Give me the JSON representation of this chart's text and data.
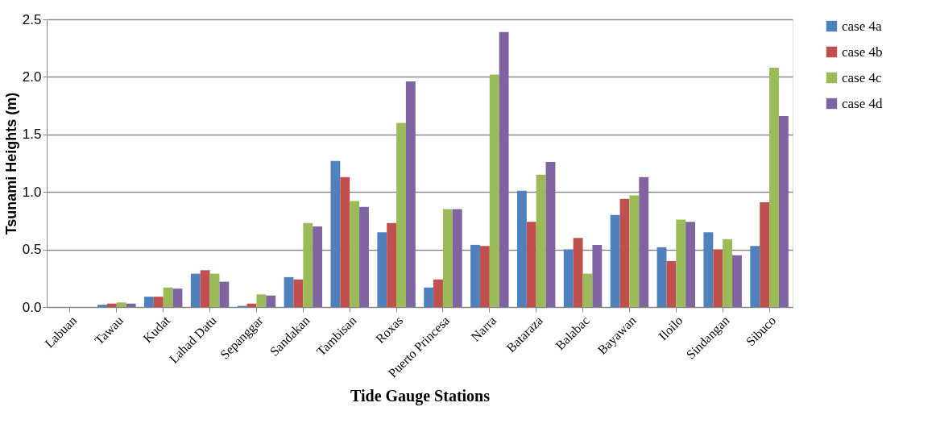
{
  "chart_data": {
    "type": "bar",
    "xlabel": "Tide Gauge Stations",
    "ylabel": "Tsunami Heights (m)",
    "categories": [
      "Labuan",
      "Tawau",
      "Kudat",
      "Lahad Datu",
      "Sepanggar",
      "Sandakan",
      "Tambisan",
      "Roxas",
      "Puerto Princesa",
      "Narra",
      "Bataraza",
      "Balabac",
      "Bayawan",
      "Iloilo",
      "Sindangan",
      "Sibuco"
    ],
    "series": [
      {
        "name": "case 4a",
        "color": "#4f81bd",
        "values": [
          null,
          0.02,
          0.09,
          0.29,
          0.01,
          0.26,
          1.27,
          0.65,
          0.17,
          0.54,
          1.01,
          0.5,
          0.8,
          0.52,
          0.65,
          0.53
        ]
      },
      {
        "name": "case 4b",
        "color": "#c0504d",
        "values": [
          null,
          0.03,
          0.09,
          0.32,
          0.03,
          0.24,
          1.13,
          0.73,
          0.24,
          0.53,
          0.74,
          0.6,
          0.94,
          0.4,
          0.5,
          0.91
        ]
      },
      {
        "name": "case 4c",
        "color": "#9bbb59",
        "values": [
          null,
          0.04,
          0.17,
          0.29,
          0.11,
          0.73,
          0.92,
          1.6,
          0.85,
          2.02,
          1.15,
          0.29,
          0.97,
          0.76,
          0.59,
          2.08
        ]
      },
      {
        "name": "case 4d",
        "color": "#8064a2",
        "values": [
          null,
          0.03,
          0.16,
          0.22,
          0.1,
          0.7,
          0.87,
          1.96,
          0.85,
          2.39,
          1.26,
          0.54,
          1.13,
          0.74,
          0.45,
          1.66
        ]
      }
    ],
    "ylim": [
      0,
      2.5
    ],
    "yticks": [
      {
        "value": 0,
        "label": "0.0"
      },
      {
        "value": 0.5,
        "label": "0.5"
      },
      {
        "value": 1,
        "label": "1.0"
      },
      {
        "value": 1.5,
        "label": "1.5"
      },
      {
        "value": 2,
        "label": "2.0"
      },
      {
        "value": 2.5,
        "label": "2.5"
      }
    ],
    "grid": "y",
    "legend": "right"
  }
}
